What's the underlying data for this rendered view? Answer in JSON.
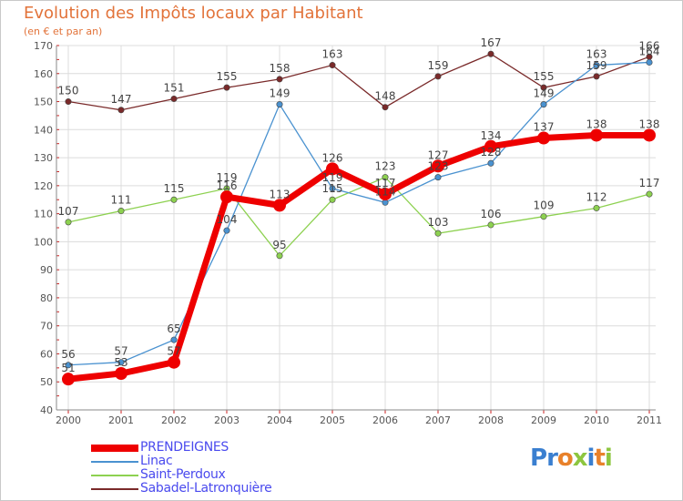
{
  "title": "Evolution des Impôts locaux par Habitant",
  "subtitle": "(en € et par an)",
  "logo": {
    "letters": [
      "P",
      "r",
      "o",
      "x",
      "i",
      "t",
      "i"
    ],
    "colors": [
      "#3a7fd0",
      "#3a7fd0",
      "#e8812a",
      "#8dc63f",
      "#3a7fd0",
      "#e8812a",
      "#8dc63f"
    ]
  },
  "chart_data": {
    "type": "line",
    "title": "Evolution des Impôts locaux par Habitant",
    "xlabel": "",
    "ylabel": "(en € et par an)",
    "x": [
      "2000",
      "2001",
      "2002",
      "2003",
      "2004",
      "2005",
      "2006",
      "2007",
      "2008",
      "2009",
      "2010",
      "2011"
    ],
    "ylim": [
      40,
      170
    ],
    "yticks": [
      "40",
      "50",
      "60",
      "70",
      "80",
      "90",
      "100",
      "110",
      "120",
      "130",
      "140",
      "150",
      "160",
      "170"
    ],
    "series": [
      {
        "name": "Sabadel-Latronquière",
        "color": "#7a2a2a",
        "thick": false,
        "values": [
          150,
          147,
          151,
          155,
          158,
          163,
          148,
          159,
          167,
          155,
          159,
          166
        ],
        "labels": [
          "150",
          "147",
          "151",
          "155",
          "158",
          "163",
          "148",
          "159",
          "167",
          "155",
          "159",
          "166"
        ]
      },
      {
        "name": "Saint-Perdoux",
        "color": "#8dd150",
        "thick": false,
        "values": [
          107,
          111,
          115,
          119,
          95,
          115,
          123,
          103,
          106,
          109,
          112,
          117
        ],
        "labels": [
          "107",
          "111",
          "115",
          "119",
          "95",
          "115",
          "123",
          "103",
          "106",
          "109",
          "112",
          "117"
        ]
      },
      {
        "name": "Linac",
        "color": "#4a92d0",
        "thick": false,
        "values": [
          56,
          57,
          65,
          104,
          149,
          119,
          114,
          123,
          128,
          149,
          163,
          164
        ],
        "labels": [
          "56",
          "57",
          "65",
          "104",
          "149",
          "119",
          "114",
          "123",
          "128",
          "149",
          "163",
          "164"
        ]
      },
      {
        "name": "PRENDEIGNES",
        "color": "#ee0000",
        "thick": true,
        "values": [
          51,
          53,
          57,
          116,
          113,
          126,
          117,
          127,
          134,
          137,
          138,
          138
        ],
        "labels": [
          "51",
          "53",
          "57",
          "116",
          "113",
          "126",
          "117",
          "127",
          "134",
          "137",
          "138",
          "138"
        ]
      }
    ],
    "legend": [
      {
        "name": "PRENDEIGNES",
        "color": "#ee0000",
        "text_color": "#4a4aee",
        "thick": true
      },
      {
        "name": "Linac",
        "color": "#4a92d0",
        "text_color": "#4a4aee",
        "thick": false
      },
      {
        "name": "Saint-Perdoux",
        "color": "#8dd150",
        "text_color": "#4a4aee",
        "thick": false
      },
      {
        "name": "Sabadel-Latronquière",
        "color": "#7a2a2a",
        "text_color": "#4a4aee",
        "thick": false
      }
    ]
  }
}
